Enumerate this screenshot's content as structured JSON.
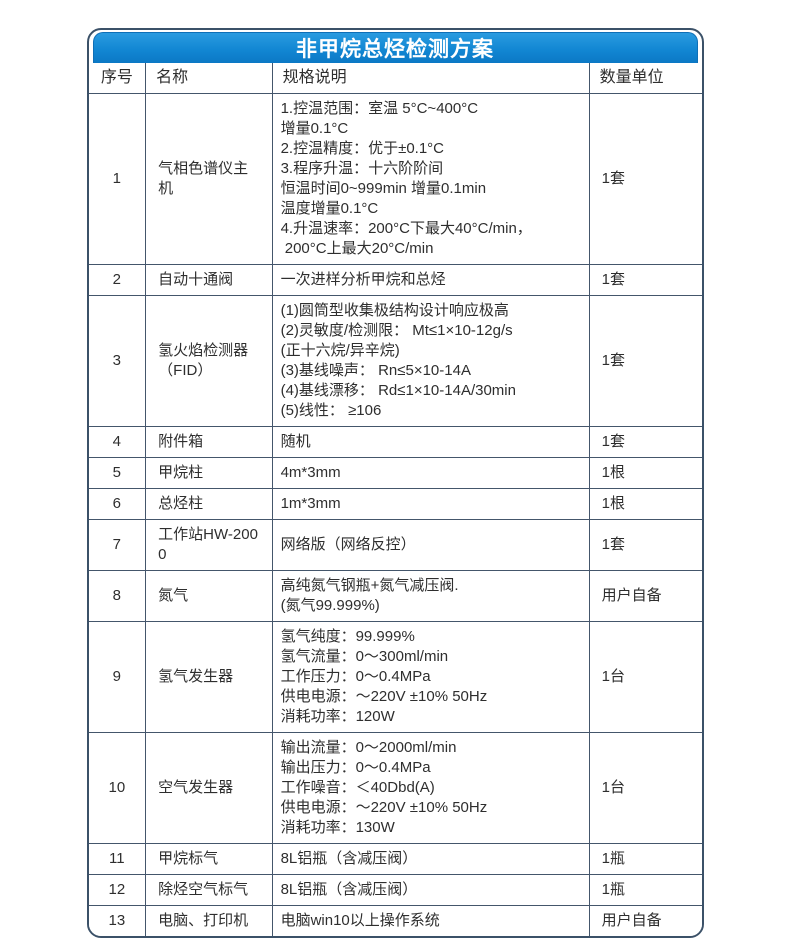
{
  "title": "非甲烷总烃检测方案",
  "colors": {
    "banner_blue_top": "#2a9be0",
    "banner_blue_bottom": "#0b78c5",
    "grid_border": "#44566b",
    "card_border": "#3b5168",
    "title_text": "#ffffff",
    "body_text": "#2e2e2e"
  },
  "table": {
    "headers": [
      "序号",
      "名称",
      "规格说明",
      "数量单位"
    ],
    "rows": [
      {
        "no": "1",
        "name": "气相色谱仪主机",
        "spec": [
          "1.控温范围：室温 5°C~400°C",
          "增量0.1°C",
          "2.控温精度：优于±0.1°C",
          "3.程序升温：十六阶阶间",
          "恒温时间0~999min 增量0.1min",
          "温度增量0.1°C",
          "4.升温速率：200°C下最大40°C/min，",
          " 200°C上最大20°C/min"
        ],
        "qty": "1套"
      },
      {
        "no": "2",
        "name": "自动十通阀",
        "spec": [
          "一次进样分析甲烷和总烃"
        ],
        "qty": "1套"
      },
      {
        "no": "3",
        "name": "氢火焰检测器（FID）",
        "spec": [
          "(1)圆筒型收集极结构设计响应极高",
          "(2)灵敏度/检测限： Mt≤1×10-12g/s",
          "(正十六烷/异辛烷)",
          "(3)基线噪声： Rn≤5×10-14A",
          "(4)基线漂移： Rd≤1×10-14A/30min",
          "(5)线性： ≥106"
        ],
        "qty": "1套"
      },
      {
        "no": "4",
        "name": "附件箱",
        "spec": [
          "随机"
        ],
        "qty": "1套"
      },
      {
        "no": "5",
        "name": "甲烷柱",
        "spec": [
          "4m*3mm"
        ],
        "qty": "1根"
      },
      {
        "no": "6",
        "name": "总烃柱",
        "spec": [
          "1m*3mm"
        ],
        "qty": "1根"
      },
      {
        "no": "7",
        "name": "工作站HW-2000",
        "spec": [
          "网络版（网络反控）"
        ],
        "qty": "1套"
      },
      {
        "no": "8",
        "name": "氮气",
        "spec": [
          "高纯氮气钢瓶+氮气减压阀.",
          "(氮气99.999%)"
        ],
        "qty": "用户自备"
      },
      {
        "no": "9",
        "name": "氢气发生器",
        "spec": [
          "氢气纯度：99.999%",
          "氢气流量：0～300ml/min",
          "工作压力：0～0.4MPa",
          "供电电源：～220V ±10% 50Hz",
          "消耗功率：120W"
        ],
        "qty": "1台"
      },
      {
        "no": "10",
        "name": "空气发生器",
        "spec": [
          "输出流量：0～2000ml/min",
          "输出压力：0～0.4MPa",
          "工作噪音：＜40Dbd(A)",
          "供电电源：～220V ±10% 50Hz",
          "消耗功率：130W"
        ],
        "qty": "1台"
      },
      {
        "no": "11",
        "name": "甲烷标气",
        "spec": [
          "8L铝瓶（含减压阀）"
        ],
        "qty": "1瓶"
      },
      {
        "no": "12",
        "name": "除烃空气标气",
        "spec": [
          "8L铝瓶（含减压阀）"
        ],
        "qty": "1瓶"
      },
      {
        "no": "13",
        "name": "电脑、打印机",
        "spec": [
          "电脑win10以上操作系统"
        ],
        "qty": "用户自备"
      }
    ]
  }
}
